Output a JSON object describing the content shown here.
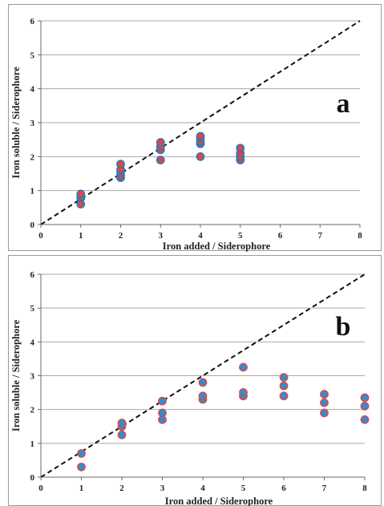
{
  "chart_data": [
    {
      "type": "scatter",
      "panel_label": "a",
      "xlabel": "Iron added / Siderophore",
      "ylabel": "Iron soluble / Siderophore",
      "xlim": [
        0,
        8
      ],
      "ylim": [
        0,
        6
      ],
      "xticks": [
        "0",
        "1",
        "2",
        "3",
        "4",
        "5",
        "6",
        "7",
        "8"
      ],
      "yticks": [
        "0",
        "1",
        "2",
        "3",
        "4",
        "5",
        "6"
      ],
      "grid": "horizontal",
      "reference_line": {
        "style": "dashed",
        "points": [
          [
            0,
            0
          ],
          [
            8,
            6
          ]
        ],
        "color": "#111111"
      },
      "marker_fill": "#e8423c",
      "marker_edge": "#1e7fc2",
      "points": [
        [
          1,
          0.6
        ],
        [
          1,
          0.78
        ],
        [
          1,
          0.82
        ],
        [
          1,
          0.9
        ],
        [
          2,
          1.38
        ],
        [
          2,
          1.45
        ],
        [
          2,
          1.55
        ],
        [
          2,
          1.62
        ],
        [
          2,
          1.78
        ],
        [
          3,
          1.9
        ],
        [
          3,
          2.2
        ],
        [
          3,
          2.3
        ],
        [
          3,
          2.42
        ],
        [
          4,
          2.0
        ],
        [
          4,
          2.38
        ],
        [
          4,
          2.45
        ],
        [
          4,
          2.55
        ],
        [
          4,
          2.6
        ],
        [
          5,
          1.9
        ],
        [
          5,
          2.0
        ],
        [
          5,
          2.1
        ],
        [
          5,
          2.25
        ]
      ]
    },
    {
      "type": "scatter",
      "panel_label": "b",
      "xlabel": "Iron added / Siderophore",
      "ylabel": "Iron soluble / Siderophore",
      "xlim": [
        0,
        8
      ],
      "ylim": [
        0,
        6
      ],
      "xticks": [
        "0",
        "1",
        "2",
        "3",
        "4",
        "5",
        "6",
        "7",
        "8"
      ],
      "yticks": [
        "0",
        "1",
        "2",
        "3",
        "4",
        "5",
        "6"
      ],
      "grid": "horizontal",
      "reference_line": {
        "style": "dashed",
        "points": [
          [
            0,
            0
          ],
          [
            8,
            6
          ]
        ],
        "color": "#111111"
      },
      "marker_fill": "#2b8fd4",
      "marker_edge": "#d94a4a",
      "points": [
        [
          1,
          0.3
        ],
        [
          1,
          0.7
        ],
        [
          2,
          1.25
        ],
        [
          2,
          1.5
        ],
        [
          2,
          1.6
        ],
        [
          3,
          1.7
        ],
        [
          3,
          1.9
        ],
        [
          3,
          2.25
        ],
        [
          4,
          2.3
        ],
        [
          4,
          2.4
        ],
        [
          4,
          2.8
        ],
        [
          5,
          2.4
        ],
        [
          5,
          2.5
        ],
        [
          5,
          3.25
        ],
        [
          6,
          2.4
        ],
        [
          6,
          2.7
        ],
        [
          6,
          2.95
        ],
        [
          7,
          1.9
        ],
        [
          7,
          2.2
        ],
        [
          7,
          2.45
        ],
        [
          8,
          1.7
        ],
        [
          8,
          2.1
        ],
        [
          8,
          2.35
        ]
      ]
    }
  ]
}
